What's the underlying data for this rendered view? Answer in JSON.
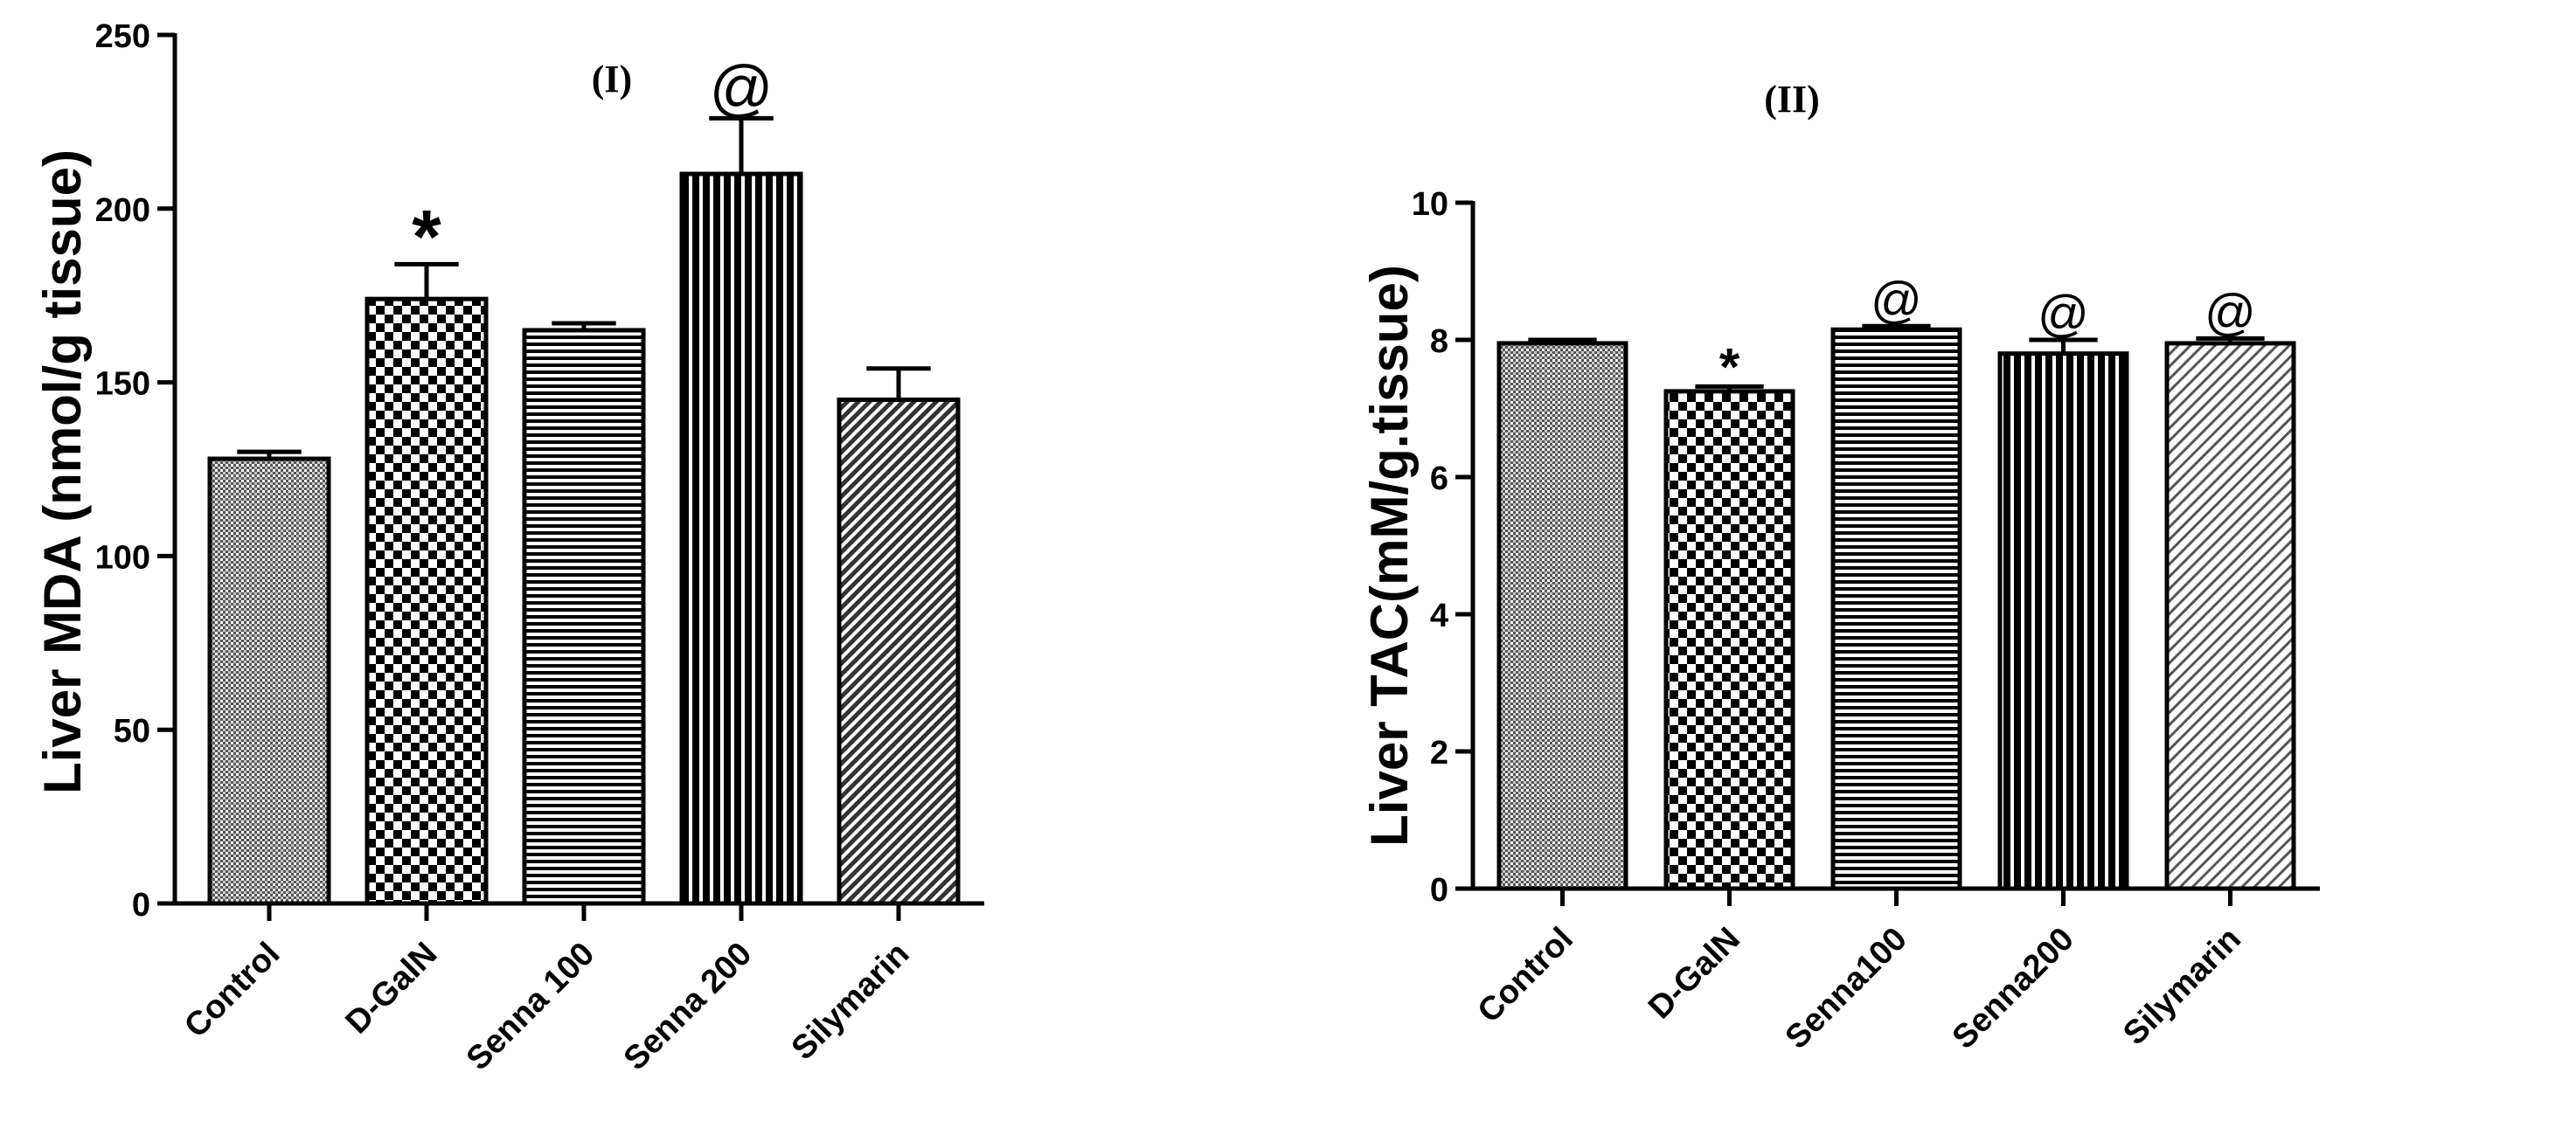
{
  "chart_data": [
    {
      "type": "bar",
      "title": "(I)",
      "xlabel": "",
      "ylabel": "Liver MDA (nmol/g tissue)",
      "categories": [
        "Control",
        "D-GalN",
        "Senna 100",
        "Senna 200",
        "Silymarin"
      ],
      "values": [
        128,
        174,
        165,
        210,
        145
      ],
      "errors": [
        2,
        10,
        2,
        16,
        9
      ],
      "annotations": [
        "",
        "*",
        "",
        "@",
        ""
      ],
      "ylim": [
        0,
        250
      ],
      "yticks": [
        0,
        50,
        100,
        150,
        200,
        250
      ],
      "patterns": [
        "fine-grid",
        "checker",
        "horizontal-lines",
        "vertical-lines",
        "diagonal-dense"
      ],
      "grid": false
    },
    {
      "type": "bar",
      "title": "(II)",
      "xlabel": "",
      "ylabel": "Liver TAC(mM/g.tissue)",
      "categories": [
        "Control",
        "D-GalN",
        "Senna100",
        "Senna200",
        "Silymarin"
      ],
      "values": [
        7.95,
        7.25,
        8.15,
        7.8,
        7.95
      ],
      "errors": [
        0.05,
        0.07,
        0.05,
        0.2,
        0.07
      ],
      "annotations": [
        "",
        "*",
        "@",
        "@",
        "@"
      ],
      "ylim": [
        0,
        10
      ],
      "yticks": [
        0,
        2,
        4,
        6,
        8,
        10
      ],
      "patterns": [
        "fine-grid",
        "checker",
        "horizontal-lines",
        "vertical-lines",
        "diagonal-light"
      ],
      "grid": false
    }
  ]
}
